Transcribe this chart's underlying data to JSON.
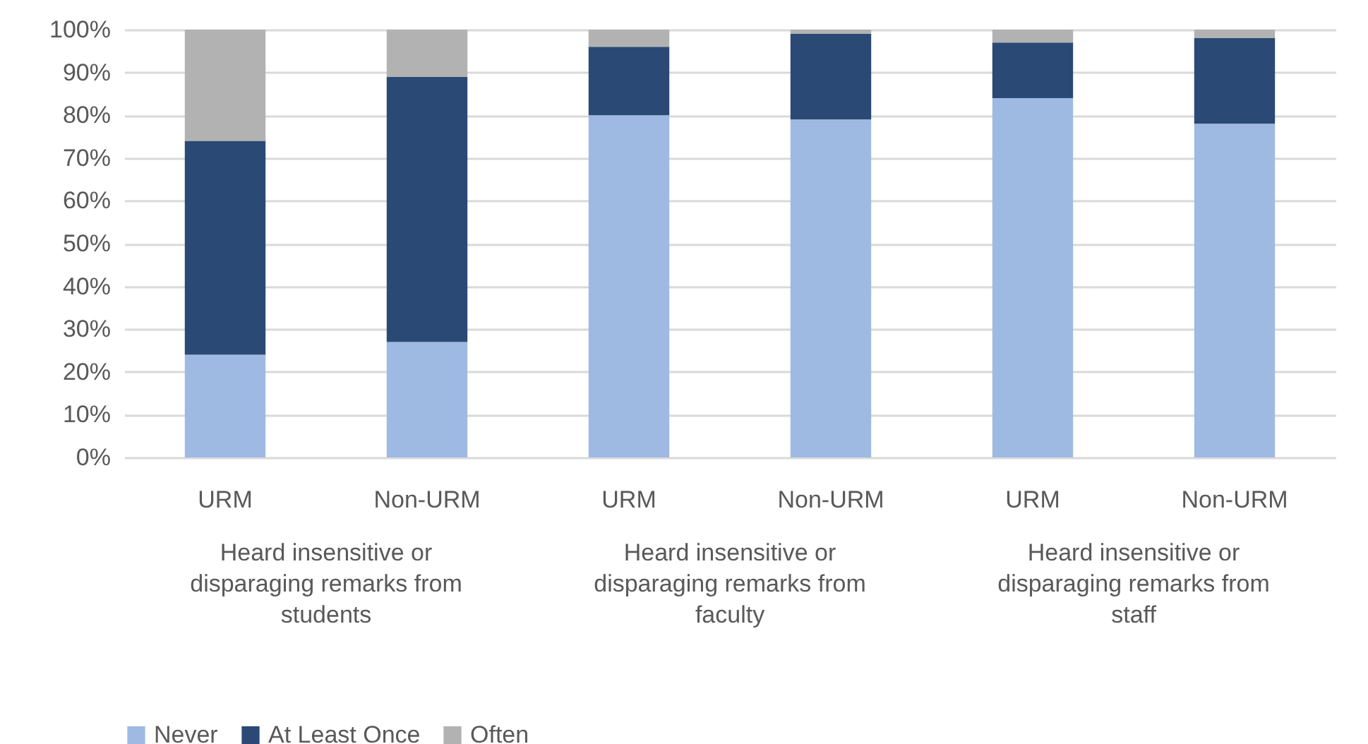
{
  "chart_data": {
    "type": "bar",
    "stacked": true,
    "categories": [
      "URM",
      "Non-URM",
      "URM",
      "Non-URM",
      "URM",
      "Non-URM"
    ],
    "series": [
      {
        "name": "Never",
        "color": "#9fbae2",
        "values": [
          24,
          27,
          80,
          79,
          84,
          78
        ]
      },
      {
        "name": "At Least Once",
        "color": "#2a4a75",
        "values": [
          50,
          62,
          16,
          20,
          13,
          20
        ]
      },
      {
        "name": "Often",
        "color": "#b2b2b2",
        "values": [
          26,
          11,
          4,
          1,
          3,
          2
        ]
      }
    ],
    "ylim": [
      0,
      100
    ],
    "yticks": [
      {
        "value": 0,
        "label": "0%"
      },
      {
        "value": 10,
        "label": "10%"
      },
      {
        "value": 20,
        "label": "20%"
      },
      {
        "value": 30,
        "label": "30%"
      },
      {
        "value": 40,
        "label": "40%"
      },
      {
        "value": 50,
        "label": "50%"
      },
      {
        "value": 60,
        "label": "60%"
      },
      {
        "value": 70,
        "label": "70%"
      },
      {
        "value": 80,
        "label": "80%"
      },
      {
        "value": 90,
        "label": "90%"
      },
      {
        "value": 100,
        "label": "100%"
      }
    ],
    "grid": "y",
    "legend": "bottom",
    "annotations": [
      "Heard insensitive or disparaging remarks from students",
      "Heard insensitive or disparaging remarks from faculty",
      "Heard insensitive or disparaging remarks from staff"
    ]
  }
}
